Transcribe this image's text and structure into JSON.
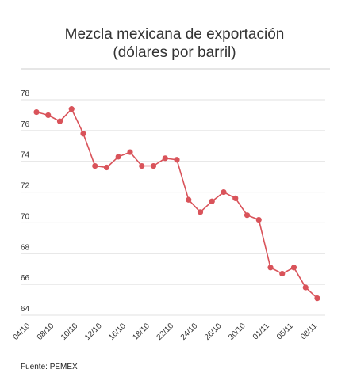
{
  "chart_data": {
    "type": "line",
    "title_line1": "Mezcla mexicana de exportación",
    "title_line2": "(dólares por barril)",
    "xlabel": "",
    "ylabel": "",
    "ylim": [
      64,
      78
    ],
    "yticks": [
      78,
      76,
      74,
      72,
      70,
      68,
      66,
      64
    ],
    "xtick_labels": [
      "04/10",
      "08/10",
      "10/10",
      "12/10",
      "16/10",
      "18/10",
      "22/10",
      "24/10",
      "26/10",
      "30/10",
      "01/11",
      "05/11",
      "08/11"
    ],
    "grid": true,
    "legend": "none",
    "colors": {
      "line": "#d9535a",
      "grid": "#e0e0e0"
    },
    "series": [
      {
        "values": [
          77.2,
          77.0,
          76.6,
          77.4,
          75.8,
          73.7,
          73.6,
          74.3,
          74.6,
          73.7,
          73.7,
          74.2,
          74.1,
          71.5,
          70.7,
          71.4,
          72.0,
          71.6,
          70.5,
          70.2,
          67.1,
          66.7,
          67.1,
          65.8,
          65.1
        ]
      }
    ]
  },
  "footer": {
    "source": "Fuente: PEMEX"
  }
}
